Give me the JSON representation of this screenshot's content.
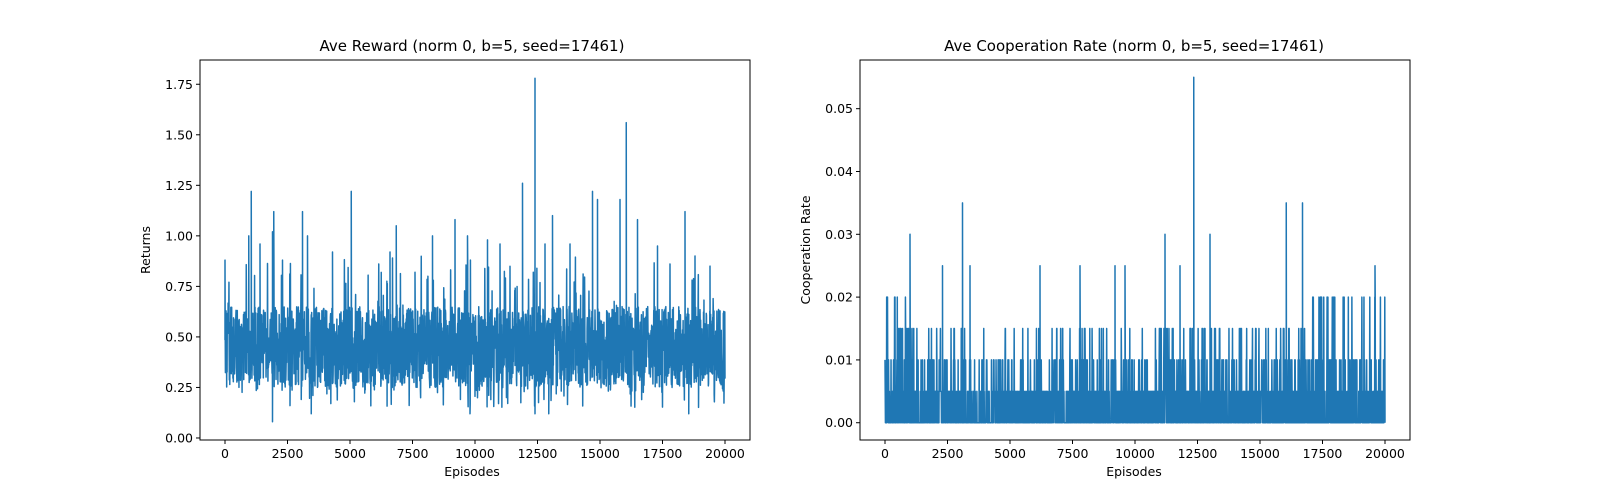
{
  "colors": {
    "line": "#1f77b4",
    "axes": "#000000",
    "background": "#ffffff"
  },
  "chart_data": [
    {
      "type": "line",
      "title": "Ave Reward (norm 0, b=5, seed=17461)",
      "xlabel": "Episodes",
      "ylabel": "Returns",
      "xlim": [
        -1000,
        21000
      ],
      "ylim": [
        -0.01,
        1.87
      ],
      "xticks": [
        0,
        2500,
        5000,
        7500,
        10000,
        12500,
        15000,
        17500,
        20000
      ],
      "xtick_labels": [
        "0",
        "2500",
        "5000",
        "7500",
        "10000",
        "12500",
        "15000",
        "17500",
        "20000"
      ],
      "yticks": [
        0.0,
        0.25,
        0.5,
        0.75,
        1.0,
        1.25,
        1.5,
        1.75
      ],
      "ytick_labels": [
        "0.00",
        "0.25",
        "0.50",
        "0.75",
        "1.00",
        "1.25",
        "1.50",
        "1.75"
      ],
      "grid": false,
      "series": [
        {
          "x_range": [
            0,
            20000
          ],
          "typical_low": 0.25,
          "typical_high": 0.65,
          "min": 0.08,
          "baseline": 0.45,
          "spikes": [
            {
              "x": 0,
              "y": 0.88
            },
            {
              "x": 950,
              "y": 1.0
            },
            {
              "x": 1050,
              "y": 1.22
            },
            {
              "x": 1400,
              "y": 0.96
            },
            {
              "x": 1900,
              "y": 1.02
            },
            {
              "x": 1950,
              "y": 1.12
            },
            {
              "x": 2300,
              "y": 0.88
            },
            {
              "x": 3100,
              "y": 1.12
            },
            {
              "x": 3300,
              "y": 1.0
            },
            {
              "x": 4300,
              "y": 0.92
            },
            {
              "x": 5050,
              "y": 1.22
            },
            {
              "x": 6600,
              "y": 0.92
            },
            {
              "x": 6850,
              "y": 1.05
            },
            {
              "x": 7600,
              "y": 0.82
            },
            {
              "x": 8300,
              "y": 1.0
            },
            {
              "x": 9200,
              "y": 1.08
            },
            {
              "x": 9700,
              "y": 1.0
            },
            {
              "x": 10500,
              "y": 0.98
            },
            {
              "x": 11000,
              "y": 0.96
            },
            {
              "x": 11900,
              "y": 1.26
            },
            {
              "x": 12400,
              "y": 1.78
            },
            {
              "x": 12800,
              "y": 0.96
            },
            {
              "x": 13100,
              "y": 1.1
            },
            {
              "x": 13800,
              "y": 0.96
            },
            {
              "x": 14700,
              "y": 1.22
            },
            {
              "x": 14900,
              "y": 1.18
            },
            {
              "x": 15800,
              "y": 1.18
            },
            {
              "x": 16050,
              "y": 1.56
            },
            {
              "x": 16500,
              "y": 1.08
            },
            {
              "x": 17300,
              "y": 0.95
            },
            {
              "x": 18400,
              "y": 1.12
            },
            {
              "x": 18800,
              "y": 0.9
            },
            {
              "x": 19400,
              "y": 0.85
            }
          ],
          "dips": [
            {
              "x": 1900,
              "y": 0.08
            },
            {
              "x": 2600,
              "y": 0.16
            },
            {
              "x": 3450,
              "y": 0.12
            },
            {
              "x": 9800,
              "y": 0.12
            },
            {
              "x": 12400,
              "y": 0.12
            },
            {
              "x": 12950,
              "y": 0.12
            },
            {
              "x": 18550,
              "y": 0.12
            }
          ]
        }
      ]
    },
    {
      "type": "line",
      "title": "Ave Cooperation Rate (norm 0, b=5, seed=17461)",
      "xlabel": "Episodes",
      "ylabel": "Cooperation Rate",
      "xlim": [
        -1000,
        21000
      ],
      "ylim": [
        -0.00275,
        0.05775
      ],
      "xticks": [
        0,
        2500,
        5000,
        7500,
        10000,
        12500,
        15000,
        17500,
        20000
      ],
      "xtick_labels": [
        "0",
        "2500",
        "5000",
        "7500",
        "10000",
        "12500",
        "15000",
        "17500",
        "20000"
      ],
      "yticks": [
        0.0,
        0.01,
        0.02,
        0.03,
        0.04,
        0.05
      ],
      "ytick_labels": [
        "0.00",
        "0.01",
        "0.02",
        "0.03",
        "0.04",
        "0.05"
      ],
      "grid": false,
      "series": [
        {
          "x_range": [
            0,
            20000
          ],
          "typical_low": 0.0,
          "typical_high": 0.01,
          "baseline": 0.0,
          "spikes": [
            {
              "x": 0,
              "y": 0.01
            },
            {
              "x": 400,
              "y": 0.02
            },
            {
              "x": 1000,
              "y": 0.03
            },
            {
              "x": 2300,
              "y": 0.025
            },
            {
              "x": 3100,
              "y": 0.035
            },
            {
              "x": 3400,
              "y": 0.025
            },
            {
              "x": 6200,
              "y": 0.025
            },
            {
              "x": 7800,
              "y": 0.025
            },
            {
              "x": 9200,
              "y": 0.025
            },
            {
              "x": 9600,
              "y": 0.025
            },
            {
              "x": 11200,
              "y": 0.03
            },
            {
              "x": 11800,
              "y": 0.025
            },
            {
              "x": 12350,
              "y": 0.055
            },
            {
              "x": 13000,
              "y": 0.03
            },
            {
              "x": 16050,
              "y": 0.035
            },
            {
              "x": 16700,
              "y": 0.035
            },
            {
              "x": 19600,
              "y": 0.025
            }
          ],
          "dense_levels": [
            0.015,
            0.02
          ]
        }
      ]
    }
  ]
}
